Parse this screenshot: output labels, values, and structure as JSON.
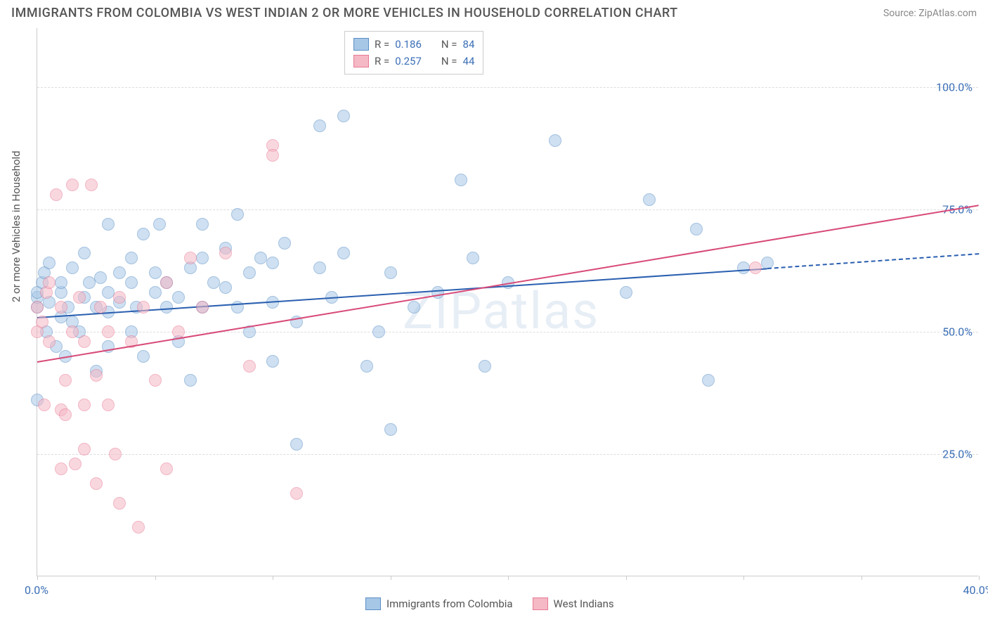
{
  "title": "IMMIGRANTS FROM COLOMBIA VS WEST INDIAN 2 OR MORE VEHICLES IN HOUSEHOLD CORRELATION CHART",
  "source": "Source: ZipAtlas.com",
  "watermark": "ZIPatlas",
  "y_axis_label": "2 or more Vehicles in Household",
  "chart": {
    "type": "scatter",
    "xlim": [
      0,
      40
    ],
    "ylim": [
      0,
      112
    ],
    "x_ticks": [
      0,
      5,
      10,
      15,
      20,
      25,
      30,
      35,
      40
    ],
    "x_tick_labels": {
      "0": "0.0%",
      "40": "40.0%"
    },
    "y_gridlines": [
      25,
      50,
      75,
      100
    ],
    "y_tick_labels": {
      "25": "25.0%",
      "50": "50.0%",
      "75": "75.0%",
      "100": "100.0%"
    },
    "background_color": "#ffffff",
    "grid_color": "#dddddd",
    "axis_color": "#cccccc",
    "label_color": "#3b6fb6",
    "point_radius": 9,
    "point_opacity": 0.55,
    "series": [
      {
        "name": "Immigrants from Colombia",
        "fill": "#a7c7e7",
        "stroke": "#5a8fc7",
        "trend_color": "#2a5fb0",
        "r_value": "0.186",
        "n_value": "84",
        "trend": {
          "x1": 0,
          "y1": 53,
          "x2": 31,
          "y2": 63
        },
        "trend_dash": {
          "x1": 31,
          "y1": 63,
          "x2": 40,
          "y2": 66
        },
        "points": [
          [
            0,
            36
          ],
          [
            0,
            55
          ],
          [
            0,
            57
          ],
          [
            0,
            58
          ],
          [
            0.2,
            60
          ],
          [
            0.3,
            62
          ],
          [
            0.4,
            50
          ],
          [
            0.5,
            56
          ],
          [
            0.5,
            64
          ],
          [
            0.8,
            47
          ],
          [
            1,
            53
          ],
          [
            1,
            58
          ],
          [
            1,
            60
          ],
          [
            1.2,
            45
          ],
          [
            1.3,
            55
          ],
          [
            1.5,
            52
          ],
          [
            1.5,
            63
          ],
          [
            1.8,
            50
          ],
          [
            2,
            57
          ],
          [
            2,
            66
          ],
          [
            2.2,
            60
          ],
          [
            2.5,
            55
          ],
          [
            2.5,
            42
          ],
          [
            2.7,
            61
          ],
          [
            3,
            54
          ],
          [
            3,
            58
          ],
          [
            3,
            47
          ],
          [
            3,
            72
          ],
          [
            3.5,
            62
          ],
          [
            3.5,
            56
          ],
          [
            4,
            60
          ],
          [
            4,
            65
          ],
          [
            4,
            50
          ],
          [
            4.2,
            55
          ],
          [
            4.5,
            45
          ],
          [
            4.5,
            70
          ],
          [
            5,
            58
          ],
          [
            5,
            62
          ],
          [
            5.2,
            72
          ],
          [
            5.5,
            55
          ],
          [
            5.5,
            60
          ],
          [
            6,
            48
          ],
          [
            6,
            57
          ],
          [
            6.5,
            63
          ],
          [
            6.5,
            40
          ],
          [
            7,
            65
          ],
          [
            7,
            55
          ],
          [
            7,
            72
          ],
          [
            7.5,
            60
          ],
          [
            8,
            67
          ],
          [
            8,
            59
          ],
          [
            8.5,
            55
          ],
          [
            8.5,
            74
          ],
          [
            9,
            62
          ],
          [
            9,
            50
          ],
          [
            9.5,
            65
          ],
          [
            10,
            56
          ],
          [
            10,
            44
          ],
          [
            10,
            64
          ],
          [
            10.5,
            68
          ],
          [
            11,
            52
          ],
          [
            11,
            27
          ],
          [
            12,
            63
          ],
          [
            12,
            92
          ],
          [
            12.5,
            57
          ],
          [
            13,
            66
          ],
          [
            13,
            94
          ],
          [
            14,
            43
          ],
          [
            14.5,
            50
          ],
          [
            15,
            30
          ],
          [
            15,
            62
          ],
          [
            16,
            55
          ],
          [
            17,
            58
          ],
          [
            18,
            81
          ],
          [
            18.5,
            65
          ],
          [
            19,
            43
          ],
          [
            20,
            60
          ],
          [
            22,
            89
          ],
          [
            25,
            58
          ],
          [
            26,
            77
          ],
          [
            28,
            71
          ],
          [
            28.5,
            40
          ],
          [
            30,
            63
          ],
          [
            31,
            64
          ]
        ]
      },
      {
        "name": "West Indians",
        "fill": "#f5b8c5",
        "stroke": "#e77a95",
        "trend_color": "#d84a78",
        "r_value": "0.257",
        "n_value": "44",
        "trend": {
          "x1": 0,
          "y1": 44,
          "x2": 40,
          "y2": 76
        },
        "points": [
          [
            0,
            50
          ],
          [
            0,
            55
          ],
          [
            0.2,
            52
          ],
          [
            0.3,
            35
          ],
          [
            0.4,
            58
          ],
          [
            0.5,
            48
          ],
          [
            0.5,
            60
          ],
          [
            0.8,
            78
          ],
          [
            1,
            55
          ],
          [
            1,
            34
          ],
          [
            1,
            22
          ],
          [
            1.2,
            33
          ],
          [
            1.2,
            40
          ],
          [
            1.5,
            50
          ],
          [
            1.5,
            80
          ],
          [
            1.6,
            23
          ],
          [
            1.8,
            57
          ],
          [
            2,
            35
          ],
          [
            2,
            48
          ],
          [
            2,
            26
          ],
          [
            2.3,
            80
          ],
          [
            2.5,
            41
          ],
          [
            2.5,
            19
          ],
          [
            2.7,
            55
          ],
          [
            3,
            35
          ],
          [
            3,
            50
          ],
          [
            3.3,
            25
          ],
          [
            3.5,
            57
          ],
          [
            3.5,
            15
          ],
          [
            4,
            48
          ],
          [
            4.3,
            10
          ],
          [
            4.5,
            55
          ],
          [
            5,
            40
          ],
          [
            5.5,
            60
          ],
          [
            5.5,
            22
          ],
          [
            6,
            50
          ],
          [
            6.5,
            65
          ],
          [
            7,
            55
          ],
          [
            8,
            66
          ],
          [
            9,
            43
          ],
          [
            10,
            88
          ],
          [
            10,
            86
          ],
          [
            11,
            17
          ],
          [
            30.5,
            63
          ]
        ]
      }
    ]
  },
  "top_legend": {
    "r_label": "R  =",
    "n_label": "N  ="
  },
  "bottom_legend": {
    "series1": "Immigrants from Colombia",
    "series2": "West Indians"
  }
}
